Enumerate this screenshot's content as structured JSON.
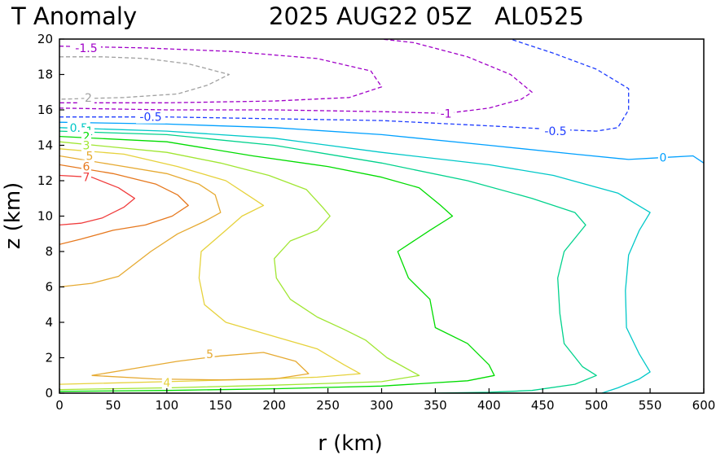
{
  "title_left": "T Anomaly",
  "title_right": "2025 AUG22 05Z   AL0525",
  "chart_data": {
    "type": "contour",
    "variable": "T Anomaly",
    "xlabel": "r (km)",
    "ylabel": "z (km)",
    "xlim": [
      0,
      600
    ],
    "ylim": [
      0,
      20
    ],
    "xticks": [
      0,
      50,
      100,
      150,
      200,
      250,
      300,
      350,
      400,
      450,
      500,
      550,
      600
    ],
    "yticks": [
      0,
      2,
      4,
      6,
      8,
      10,
      12,
      14,
      16,
      18,
      20
    ],
    "contours": [
      {
        "level": "-2",
        "label": "-2",
        "color": "#a0a0a0",
        "dashed": true,
        "points": [
          [
            0,
            19.0
          ],
          [
            40,
            19.0
          ],
          [
            80,
            18.9
          ],
          [
            120,
            18.6
          ],
          [
            158,
            18.0
          ],
          [
            138,
            17.4
          ],
          [
            110,
            16.9
          ],
          [
            60,
            16.7
          ],
          [
            0,
            16.6
          ]
        ],
        "label_at": [
          25,
          16.7
        ]
      },
      {
        "level": "-1.5",
        "label": "-1.5",
        "color": "#a000c8",
        "dashed": true,
        "points": [
          [
            0,
            19.6
          ],
          [
            80,
            19.5
          ],
          [
            160,
            19.3
          ],
          [
            240,
            18.9
          ],
          [
            290,
            18.2
          ],
          [
            300,
            17.3
          ],
          [
            270,
            16.7
          ],
          [
            200,
            16.5
          ],
          [
            100,
            16.4
          ],
          [
            0,
            16.4
          ]
        ],
        "label_at": [
          25,
          19.5
        ]
      },
      {
        "level": "-1",
        "label": "-1",
        "color": "#a000c8",
        "dashed": true,
        "points": [
          [
            0,
            16.1
          ],
          [
            100,
            16.0
          ],
          [
            200,
            16.0
          ],
          [
            300,
            15.9
          ],
          [
            360,
            15.8
          ],
          [
            400,
            16.1
          ],
          [
            430,
            16.6
          ],
          [
            440,
            17.0
          ],
          [
            420,
            18.0
          ],
          [
            380,
            19.0
          ],
          [
            330,
            19.8
          ],
          [
            300,
            20.0
          ]
        ],
        "label_at": [
          360,
          15.8
        ]
      },
      {
        "level": "-0.5",
        "label": "-0.5",
        "color": "#1e3cff",
        "dashed": true,
        "points": [
          [
            0,
            15.6
          ],
          [
            100,
            15.6
          ],
          [
            200,
            15.5
          ],
          [
            300,
            15.4
          ],
          [
            400,
            15.1
          ],
          [
            460,
            14.9
          ],
          [
            500,
            14.8
          ],
          [
            520,
            15.0
          ],
          [
            530,
            16.0
          ],
          [
            530,
            17.2
          ],
          [
            500,
            18.3
          ],
          [
            460,
            19.2
          ],
          [
            420,
            20.0
          ]
        ],
        "label_at": [
          462,
          14.8
        ],
        "label_at2": [
          85,
          15.6
        ]
      },
      {
        "level": "0",
        "label": "0",
        "color": "#00a0ff",
        "dashed": false,
        "points": [
          [
            0,
            15.3
          ],
          [
            100,
            15.2
          ],
          [
            200,
            15.0
          ],
          [
            300,
            14.6
          ],
          [
            400,
            14.0
          ],
          [
            480,
            13.5
          ],
          [
            530,
            13.2
          ],
          [
            560,
            13.3
          ],
          [
            590,
            13.4
          ],
          [
            600,
            13.0
          ]
        ],
        "label_at": [
          562,
          13.3
        ]
      },
      {
        "level": "0.5",
        "label": "0.5",
        "color": "#00c8c8",
        "dashed": false,
        "points": [
          [
            0,
            15.0
          ],
          [
            100,
            14.8
          ],
          [
            200,
            14.4
          ],
          [
            300,
            13.6
          ],
          [
            400,
            12.9
          ],
          [
            460,
            12.3
          ],
          [
            520,
            11.3
          ],
          [
            550,
            10.2
          ],
          [
            540,
            9.2
          ],
          [
            530,
            7.8
          ],
          [
            527,
            5.8
          ],
          [
            528,
            3.7
          ],
          [
            540,
            2.2
          ],
          [
            550,
            1.2
          ],
          [
            540,
            0.8
          ],
          [
            520,
            0.3
          ],
          [
            505,
            0
          ]
        ],
        "label_at": [
          18,
          15.0
        ]
      },
      {
        "level": "1",
        "label": "1",
        "color": "#00d28c",
        "dashed": false,
        "points": [
          [
            0,
            14.8
          ],
          [
            100,
            14.6
          ],
          [
            200,
            14.0
          ],
          [
            300,
            13.0
          ],
          [
            380,
            12.0
          ],
          [
            440,
            11.0
          ],
          [
            480,
            10.2
          ],
          [
            490,
            9.5
          ],
          [
            470,
            8.0
          ],
          [
            464,
            6.5
          ],
          [
            466,
            4.5
          ],
          [
            470,
            2.8
          ],
          [
            487,
            1.5
          ],
          [
            500,
            1.0
          ],
          [
            480,
            0.5
          ],
          [
            440,
            0.15
          ],
          [
            400,
            0.05
          ],
          [
            348,
            0
          ]
        ],
        "label_at": [
          28,
          14.8
        ]
      },
      {
        "level": "2",
        "label": "2",
        "color": "#00dc00",
        "dashed": false,
        "points": [
          [
            0,
            14.5
          ],
          [
            100,
            14.2
          ],
          [
            180,
            13.4
          ],
          [
            250,
            12.8
          ],
          [
            300,
            12.2
          ],
          [
            335,
            11.6
          ],
          [
            355,
            10.6
          ],
          [
            366,
            10.0
          ],
          [
            345,
            9.2
          ],
          [
            315,
            8.0
          ],
          [
            325,
            6.5
          ],
          [
            345,
            5.3
          ],
          [
            350,
            3.7
          ],
          [
            380,
            2.8
          ],
          [
            400,
            1.6
          ],
          [
            405,
            1.0
          ],
          [
            380,
            0.7
          ],
          [
            300,
            0.4
          ],
          [
            200,
            0.25
          ],
          [
            100,
            0.15
          ],
          [
            0,
            0.1
          ]
        ],
        "label_at": [
          25,
          14.5
        ]
      },
      {
        "level": "3",
        "label": "3",
        "color": "#a0e632",
        "dashed": false,
        "points": [
          [
            0,
            14.2
          ],
          [
            100,
            13.6
          ],
          [
            150,
            13.0
          ],
          [
            195,
            12.3
          ],
          [
            230,
            11.5
          ],
          [
            245,
            10.5
          ],
          [
            252,
            10.0
          ],
          [
            240,
            9.2
          ],
          [
            215,
            8.6
          ],
          [
            200,
            7.6
          ],
          [
            202,
            6.5
          ],
          [
            215,
            5.3
          ],
          [
            240,
            4.3
          ],
          [
            265,
            3.6
          ],
          [
            285,
            3.0
          ],
          [
            305,
            2.0
          ],
          [
            335,
            1.0
          ],
          [
            300,
            0.65
          ],
          [
            200,
            0.45
          ],
          [
            100,
            0.3
          ],
          [
            0,
            0.2
          ]
        ],
        "label_at": [
          25,
          14.0
        ]
      },
      {
        "level": "4",
        "label": "4",
        "color": "#e6d23c",
        "dashed": false,
        "points": [
          [
            0,
            13.8
          ],
          [
            60,
            13.5
          ],
          [
            110,
            12.8
          ],
          [
            155,
            12.0
          ],
          [
            180,
            11.0
          ],
          [
            190,
            10.6
          ],
          [
            170,
            10.0
          ],
          [
            155,
            9.2
          ],
          [
            132,
            8.0
          ],
          [
            130,
            6.5
          ],
          [
            135,
            5.0
          ],
          [
            155,
            4.0
          ],
          [
            200,
            3.2
          ],
          [
            240,
            2.5
          ],
          [
            265,
            1.6
          ],
          [
            280,
            1.1
          ],
          [
            240,
            0.9
          ],
          [
            160,
            0.75
          ],
          [
            100,
            0.65
          ],
          [
            0,
            0.5
          ]
        ],
        "label_at": [
          100,
          0.6
        ]
      },
      {
        "level": "5",
        "label": "5",
        "color": "#e6aa32",
        "dashed": false,
        "points": [
          [
            0,
            13.4
          ],
          [
            50,
            12.9
          ],
          [
            100,
            12.4
          ],
          [
            130,
            11.8
          ],
          [
            145,
            11.2
          ],
          [
            150,
            10.2
          ],
          [
            135,
            9.7
          ],
          [
            110,
            9.0
          ],
          [
            85,
            8.0
          ],
          [
            55,
            6.6
          ],
          [
            30,
            6.2
          ],
          [
            0,
            6.0
          ]
        ],
        "label_at": [
          28,
          13.4
        ]
      },
      {
        "level": "5",
        "label": "5",
        "color": "#e6aa32",
        "dashed": false,
        "closed": true,
        "points": [
          [
            30,
            1.0
          ],
          [
            70,
            1.4
          ],
          [
            110,
            1.8
          ],
          [
            150,
            2.1
          ],
          [
            190,
            2.3
          ],
          [
            220,
            1.8
          ],
          [
            232,
            1.1
          ],
          [
            200,
            0.8
          ],
          [
            150,
            0.75
          ],
          [
            90,
            0.8
          ],
          [
            30,
            1.0
          ]
        ],
        "label_at": [
          140,
          2.2
        ]
      },
      {
        "level": "6",
        "label": "6",
        "color": "#e6781e",
        "dashed": false,
        "points": [
          [
            0,
            12.9
          ],
          [
            50,
            12.4
          ],
          [
            90,
            11.8
          ],
          [
            110,
            11.2
          ],
          [
            120,
            10.6
          ],
          [
            105,
            10.0
          ],
          [
            80,
            9.5
          ],
          [
            50,
            9.2
          ],
          [
            20,
            8.7
          ],
          [
            0,
            8.4
          ]
        ],
        "label_at": [
          25,
          12.8
        ]
      },
      {
        "level": "7",
        "label": "7",
        "color": "#f03c3c",
        "dashed": false,
        "points": [
          [
            0,
            12.3
          ],
          [
            30,
            12.2
          ],
          [
            55,
            11.6
          ],
          [
            70,
            11.0
          ],
          [
            60,
            10.5
          ],
          [
            40,
            9.9
          ],
          [
            20,
            9.6
          ],
          [
            0,
            9.5
          ]
        ],
        "label_at": [
          25,
          12.2
        ]
      }
    ]
  }
}
